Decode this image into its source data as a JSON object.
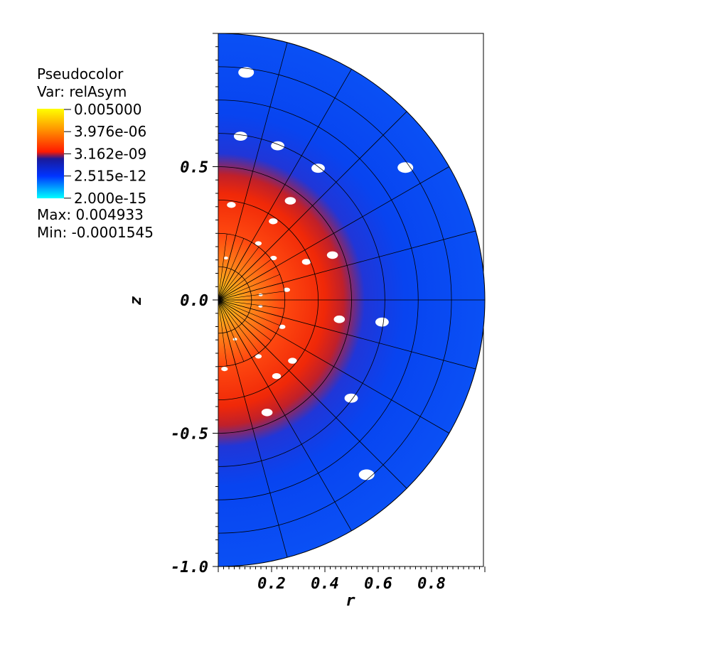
{
  "legend": {
    "title": "Pseudocolor",
    "var_label": "Var: relAsym",
    "levels": [
      "0.005000",
      "3.976e-06",
      "3.162e-09",
      "2.515e-12",
      "2.000e-15"
    ],
    "max_label": "Max:  0.004933",
    "min_label": "Min: -0.0001545",
    "colors": [
      "#ffff00",
      "#ff8c00",
      "#ff1a00",
      "#1a1a9a",
      "#0033ff",
      "#00ffff"
    ]
  },
  "chart_data": {
    "type": "heatmap",
    "geometry": "half-disk",
    "variable": "relAsym",
    "scale": "log",
    "color_range": [
      2e-15,
      0.005
    ],
    "data_max": 0.004933,
    "data_min": -0.0001545,
    "xlabel": "r",
    "ylabel": "z",
    "xlim": [
      0,
      1
    ],
    "ylim": [
      -1,
      1
    ],
    "x_ticks": [
      {
        "value": 0.2,
        "label": "0.2"
      },
      {
        "value": 0.4,
        "label": "0.4"
      },
      {
        "value": 0.6,
        "label": "0.6"
      },
      {
        "value": 0.8,
        "label": "0.8"
      }
    ],
    "y_ticks": [
      {
        "value": 0.5,
        "label": "0.5"
      },
      {
        "value": 0.0,
        "label": "0.0"
      },
      {
        "value": -0.5,
        "label": "-0.5"
      },
      {
        "value": -1.0,
        "label": "-1.0"
      }
    ],
    "grid_radii": [
      0.125,
      0.25,
      0.375,
      0.5,
      0.625,
      0.75,
      0.875,
      1.0
    ],
    "grid_angles_deg": [
      -90,
      -75,
      -60,
      -45,
      -30,
      -15,
      0,
      15,
      30,
      45,
      60,
      75,
      90
    ]
  }
}
